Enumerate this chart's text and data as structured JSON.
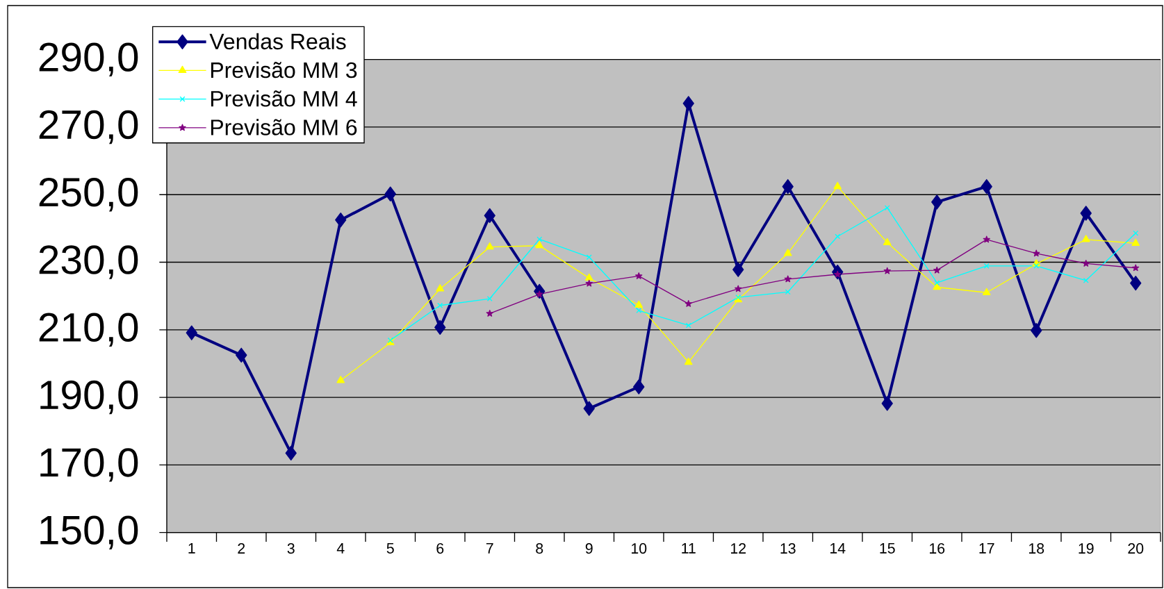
{
  "chart_data": {
    "type": "line",
    "categories": [
      "1",
      "2",
      "3",
      "4",
      "5",
      "6",
      "7",
      "8",
      "9",
      "10",
      "11",
      "12",
      "13",
      "14",
      "15",
      "16",
      "17",
      "18",
      "19",
      "20"
    ],
    "series": [
      {
        "name": "Vendas Reais",
        "color": "#000080",
        "marker": "diamond",
        "values": [
          209.1,
          202.5,
          173.5,
          242.5,
          250.2,
          210.7,
          243.8,
          221.4,
          186.7,
          193.1,
          277.0,
          227.8,
          252.4,
          227.1,
          188.2,
          247.8,
          252.4,
          209.8,
          244.5,
          223.8
        ]
      },
      {
        "name": "Previsão MM 3",
        "color": "#ffff00",
        "marker": "triangle",
        "values": [
          null,
          null,
          null,
          195.0,
          206.2,
          222.1,
          234.5,
          234.9,
          225.3,
          217.3,
          200.4,
          218.9,
          232.6,
          252.4,
          235.8,
          222.6,
          221.0,
          229.5,
          236.7,
          235.6
        ]
      },
      {
        "name": "Previsão MM 4",
        "color": "#00ffff",
        "marker": "cross",
        "values": [
          null,
          null,
          null,
          null,
          206.9,
          217.2,
          219.2,
          236.8,
          231.5,
          215.7,
          211.3,
          219.6,
          221.2,
          237.6,
          246.1,
          223.9,
          228.9,
          228.9,
          224.6,
          238.6
        ]
      },
      {
        "name": "Previsão MM 6",
        "color": "#800080",
        "marker": "star",
        "values": [
          null,
          null,
          null,
          null,
          null,
          null,
          214.8,
          220.5,
          223.7,
          225.9,
          217.7,
          222.1,
          225.0,
          226.4,
          227.4,
          227.6,
          236.7,
          232.6,
          229.6,
          228.3
        ]
      }
    ],
    "ylim": [
      150,
      290
    ],
    "yticks": [
      {
        "value": 150,
        "label": "150,0"
      },
      {
        "value": 170,
        "label": "170,0"
      },
      {
        "value": 190,
        "label": "190,0"
      },
      {
        "value": 210,
        "label": "210,0"
      },
      {
        "value": 230,
        "label": "230,0"
      },
      {
        "value": 250,
        "label": "250,0"
      },
      {
        "value": 270,
        "label": "270,0"
      },
      {
        "value": 290,
        "label": "290,0"
      }
    ],
    "grid": "y",
    "legend": "top left"
  }
}
